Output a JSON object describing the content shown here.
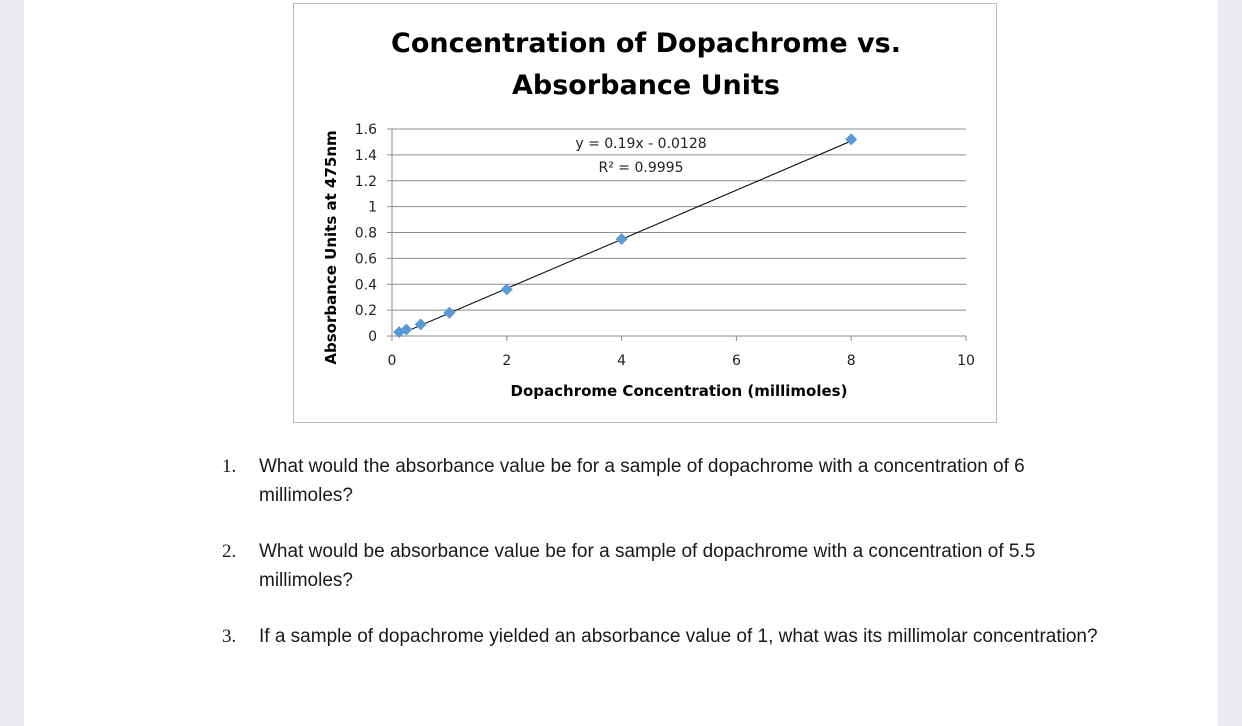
{
  "chart_data": {
    "type": "scatter",
    "title_lines": [
      "Concentration of Dopachrome vs.",
      "Absorbance Units"
    ],
    "xlabel": "Dopachrome Concentration (millimoles)",
    "ylabel": "Absorbance Units at 475nm",
    "xlim": [
      0,
      10
    ],
    "ylim": [
      0,
      1.6
    ],
    "x_ticks": [
      "0",
      "2",
      "4",
      "6",
      "8",
      "10"
    ],
    "y_ticks": [
      "0",
      "0.2",
      "0.4",
      "0.6",
      "0.8",
      "1",
      "1.2",
      "1.4",
      "1.6"
    ],
    "grid": true,
    "points": [
      {
        "x": 0.125,
        "y": 0.03
      },
      {
        "x": 0.25,
        "y": 0.05
      },
      {
        "x": 0.5,
        "y": 0.09
      },
      {
        "x": 1,
        "y": 0.18
      },
      {
        "x": 2,
        "y": 0.36
      },
      {
        "x": 4,
        "y": 0.75
      },
      {
        "x": 8,
        "y": 1.52
      }
    ],
    "trendline": {
      "slope": 0.19,
      "intercept": -0.0128,
      "x_range": [
        0.125,
        8
      ]
    },
    "equation_label": "y = 0.19x - 0.0128",
    "r2_label": "R² = 0.9995",
    "marker_color": "#5b9bd5",
    "line_color": "#000000"
  },
  "questions": [
    {
      "num": "1.",
      "text": "What would the absorbance value be for a sample of dopachrome with a concentration of 6 millimoles?"
    },
    {
      "num": "2.",
      "text": "What would be absorbance value be for a sample of dopachrome with a concentration of 5.5 millimoles?"
    },
    {
      "num": "3.",
      "text": "If a sample of dopachrome yielded an absorbance value of 1, what was its millimolar concentration?"
    }
  ]
}
